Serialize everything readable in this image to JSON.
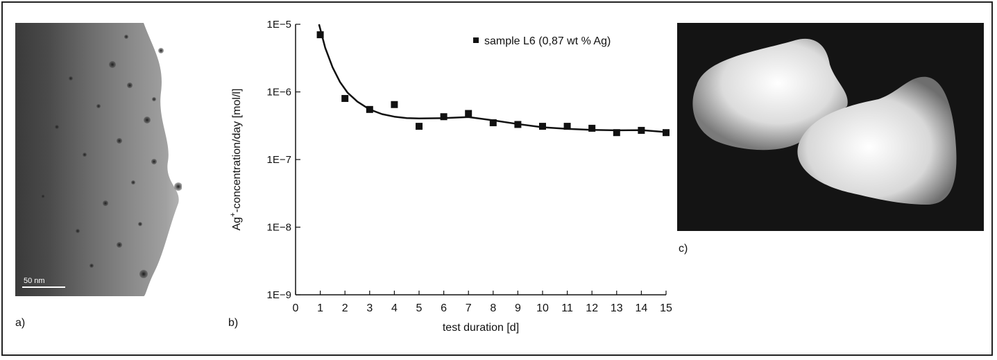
{
  "panels": {
    "a_label": "a)",
    "b_label": "b)",
    "c_label": "c)",
    "scale_bar_text": "50 nm"
  },
  "chart_data": {
    "type": "scatter",
    "xlabel": "test duration [d]",
    "ylabel_main": "Ag",
    "ylabel_sup": "+",
    "ylabel_rest": "-concentration/day [mol/l]",
    "xlim": [
      0,
      15
    ],
    "ylim": [
      1e-09,
      1e-05
    ],
    "y_scale": "log",
    "x_ticks": [
      "0",
      "1",
      "2",
      "3",
      "4",
      "5",
      "6",
      "7",
      "8",
      "9",
      "10",
      "11",
      "12",
      "13",
      "14",
      "15"
    ],
    "y_ticks": [
      "1E−9",
      "1E−8",
      "1E−7",
      "1E−6",
      "1E−5"
    ],
    "legend_position": "top-right",
    "series": [
      {
        "name": "sample L6 (0,87 wt % Ag)",
        "x": [
          1,
          2,
          3,
          4,
          5,
          6,
          7,
          8,
          9,
          10,
          11,
          12,
          13,
          14,
          15
        ],
        "y": [
          7e-06,
          8e-07,
          5.5e-07,
          6.5e-07,
          3.1e-07,
          4.3e-07,
          4.8e-07,
          3.5e-07,
          3.3e-07,
          3.1e-07,
          3.1e-07,
          2.9e-07,
          2.5e-07,
          2.7e-07,
          2.5e-07
        ]
      }
    ],
    "fit_line": {
      "x": [
        0.95,
        1.2,
        1.5,
        1.8,
        2.1,
        2.5,
        3.0,
        3.5,
        4.0,
        4.5,
        5.0,
        6.0,
        7.0,
        8.0,
        9.0,
        10.0,
        11.0,
        12.0,
        13.0,
        14.0,
        15.0
      ],
      "y": [
        1e-05,
        4.5e-06,
        2.3e-06,
        1.4e-06,
        9.8e-07,
        7.2e-07,
        5.5e-07,
        4.7e-07,
        4.3e-07,
        4.1e-07,
        4.05e-07,
        4.1e-07,
        4.25e-07,
        3.8e-07,
        3.35e-07,
        3e-07,
        2.85e-07,
        2.75e-07,
        2.7e-07,
        2.72e-07,
        2.55e-07
      ]
    }
  }
}
